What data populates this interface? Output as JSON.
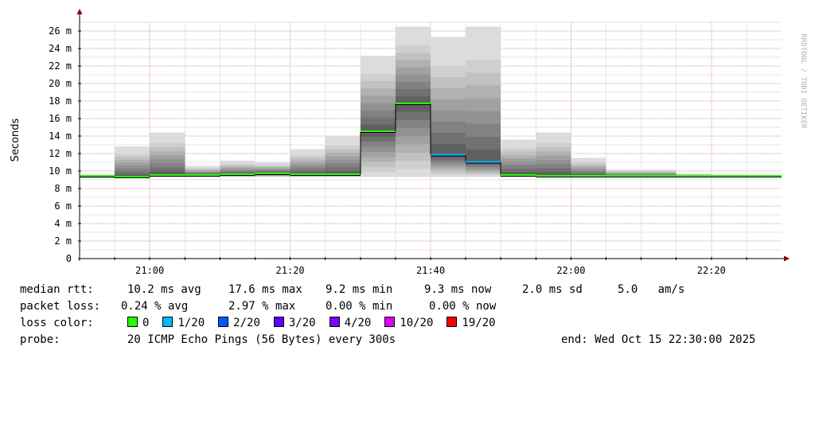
{
  "chart_data": {
    "type": "area",
    "ylabel": "Seconds",
    "ylim": [
      0,
      0.027
    ],
    "yticks": [
      0,
      0.002,
      0.004,
      0.006,
      0.008,
      0.01,
      0.012,
      0.014,
      0.016,
      0.018,
      0.02,
      0.022,
      0.024,
      0.026
    ],
    "ytick_labels": [
      "0",
      "2 m",
      "4 m",
      "6 m",
      "8 m",
      "10 m",
      "12 m",
      "14 m",
      "16 m",
      "18 m",
      "20 m",
      "22 m",
      "24 m",
      "26 m"
    ],
    "xlim": [
      "20:50",
      "22:30"
    ],
    "xticks": [
      "21:00",
      "21:20",
      "21:40",
      "22:00",
      "22:20"
    ],
    "grid": true,
    "credit": "RRDTOOL / TOBI OETIKER",
    "series": [
      {
        "name": "median rtt",
        "x": [
          "20:50",
          "20:55",
          "21:00",
          "21:05",
          "21:10",
          "21:15",
          "21:20",
          "21:25",
          "21:30",
          "21:35",
          "21:40",
          "21:45",
          "21:50",
          "21:55",
          "22:00",
          "22:05",
          "22:10",
          "22:15",
          "22:20",
          "22:25"
        ],
        "min": [
          0.0092,
          0.0093,
          0.0093,
          0.0093,
          0.0093,
          0.0093,
          0.0093,
          0.0093,
          0.0093,
          0.0093,
          0.0093,
          0.0093,
          0.0093,
          0.0093,
          0.0093,
          0.0093,
          0.0093,
          0.0093,
          0.0093,
          0.0093
        ],
        "max": [
          0.0096,
          0.0128,
          0.0144,
          0.0106,
          0.0112,
          0.011,
          0.0125,
          0.014,
          0.0232,
          0.0265,
          0.0253,
          0.0265,
          0.0136,
          0.0144,
          0.0115,
          0.0102,
          0.0102,
          0.0097,
          0.0096,
          0.0095
        ],
        "median": [
          0.0094,
          0.0093,
          0.0095,
          0.0095,
          0.0096,
          0.0097,
          0.0096,
          0.0096,
          0.0145,
          0.0177,
          0.0118,
          0.011,
          0.0095,
          0.0094,
          0.0094,
          0.0094,
          0.0094,
          0.0094,
          0.0094,
          0.0094
        ],
        "loss": [
          0,
          0,
          0,
          0,
          0,
          0,
          0,
          0,
          0,
          0,
          1,
          1,
          0,
          0,
          0,
          0,
          0,
          0,
          0,
          0
        ]
      }
    ]
  },
  "stats": {
    "median_rtt": {
      "label": "median rtt:",
      "avg": "10.2 ms avg",
      "max": "17.6 ms max",
      "min": "9.2 ms min",
      "now": "9.3 ms now",
      "sd": "2.0 ms sd",
      "am": "5.0   am/s"
    },
    "packet_loss": {
      "label": "packet loss:",
      "avg": "0.24 % avg",
      "max": "2.97 % max",
      "min": "0.00 % min",
      "now": "0.00 % now"
    },
    "loss_color": {
      "label": "loss color:",
      "items": [
        {
          "label": "0",
          "color": "#26ff00"
        },
        {
          "label": "1/20",
          "color": "#00b8ff"
        },
        {
          "label": "2/20",
          "color": "#0059ff"
        },
        {
          "label": "3/20",
          "color": "#5e00ff"
        },
        {
          "label": "4/20",
          "color": "#7e00ff"
        },
        {
          "label": "10/20",
          "color": "#dd00ff"
        },
        {
          "label": "19/20",
          "color": "#ff0000"
        }
      ]
    },
    "probe": {
      "label": "probe:",
      "desc": "20 ICMP Echo Pings (56 Bytes) every 300s",
      "end": "end: Wed Oct 15 22:30:00 2025"
    }
  }
}
